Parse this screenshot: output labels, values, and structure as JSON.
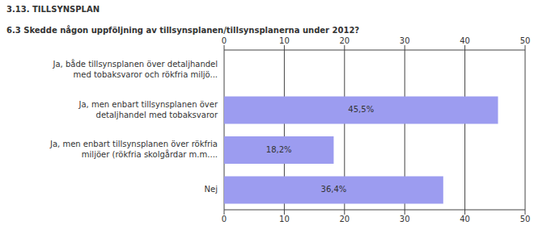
{
  "chart_data": {
    "type": "bar",
    "title": "3.13. TILLSYNSPLAN",
    "subtitle": "6.3 Skedde någon uppföljning av tillsynsplanen/tillsynsplanerna under 2012?",
    "orientation": "horizontal",
    "categories": [
      "Ja, både tillsynsplanen över detaljhandel med tobaksvaror och rökfria miljö...",
      "Ja, men enbart tillsynsplanen över detaljhandel med tobaksvaror",
      "Ja, men enbart tillsynsplanen över rökfria miljöer (rökfria skolgårdar m.m....",
      "Nej"
    ],
    "values": [
      0,
      45.5,
      18.2,
      36.4
    ],
    "value_labels": [
      null,
      "45,5%",
      "18,2%",
      "36,4%"
    ],
    "data_labels": true,
    "color": "#9c9cf0",
    "xlim": [
      0,
      50
    ],
    "xticks": [
      0,
      10,
      20,
      30,
      40,
      50
    ],
    "grid": true
  }
}
